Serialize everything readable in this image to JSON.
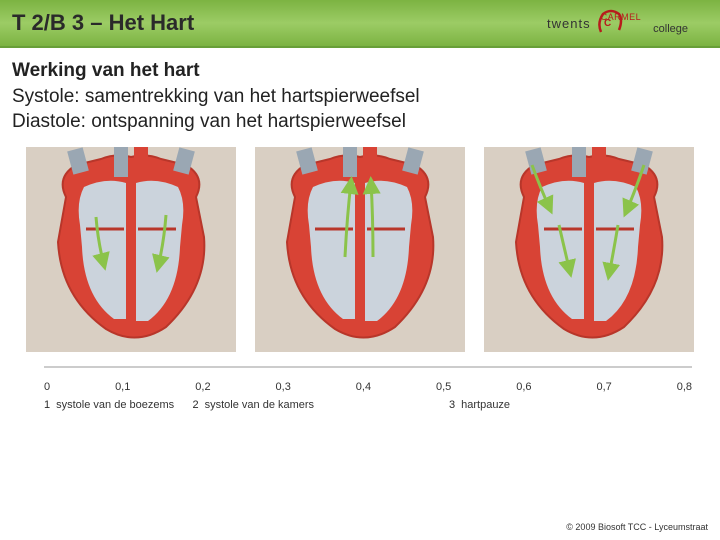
{
  "header": {
    "title": "T 2/B 3 – Het Hart",
    "logo_text_left": "twents",
    "logo_text_mid": "CARMEL",
    "logo_text_right": "college"
  },
  "content": {
    "heading": "Werking van het hart",
    "line1": "Systole: samentrekking van het hartspierweefsel",
    "line2": "Diastole: ontspanning van het hartspierweefsel"
  },
  "diagram": {
    "heart_count": 3,
    "colors": {
      "background": "#d9cfc3",
      "muscle": "#d84335",
      "muscle_dark": "#b8362a",
      "chamber_light": "#cbd3dc",
      "chamber_sep": "#e8e8e8",
      "arrow": "#8bc34a",
      "vessel_blue": "#9aa7b3"
    },
    "hearts": [
      {
        "phase": "atrial_systole",
        "arrows_down_atria": true,
        "arrows_up_out": false,
        "arrows_in_top": false
      },
      {
        "phase": "ventricular_systole",
        "arrows_down_atria": false,
        "arrows_up_out": true,
        "arrows_in_top": false
      },
      {
        "phase": "diastole",
        "arrows_down_atria": false,
        "arrows_up_out": false,
        "arrows_in_top": true
      }
    ],
    "timeline": {
      "ticks": [
        "0",
        "0,1",
        "0,2",
        "0,3",
        "0,4",
        "0,5",
        "0,6",
        "0,7",
        "0,8"
      ],
      "labels": [
        {
          "num": "1",
          "text": "systole van de boezems",
          "flex": 1.1
        },
        {
          "num": "2",
          "text": "systole van de kamers",
          "flex": 1.9
        },
        {
          "num": "3",
          "text": "hartpauze",
          "flex": 1.8
        }
      ],
      "axis_color": "#999999",
      "tick_fontsize": 11,
      "label_fontsize": 11
    }
  },
  "footer": {
    "copyright": "© 2009 Biosoft TCC - Lyceumstraat"
  }
}
